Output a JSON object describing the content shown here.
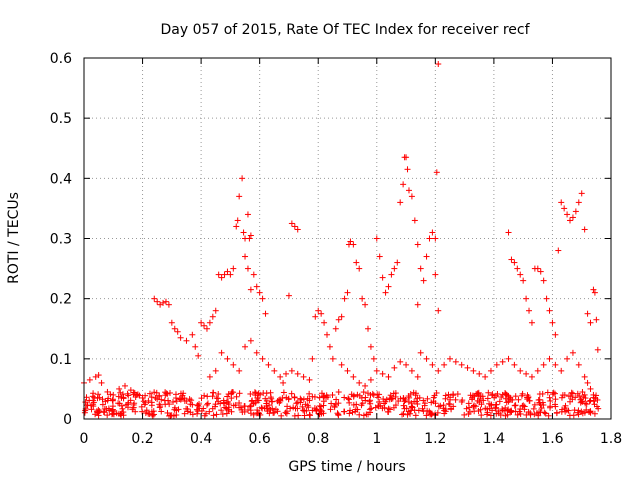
{
  "chart_data": {
    "type": "scatter",
    "title": "Day 057 of 2015, Rate Of TEC Index for receiver recf",
    "xlabel": "GPS time / hours",
    "ylabel": "ROTI / TECUs",
    "xlim": [
      0,
      1.8
    ],
    "ylim": [
      0,
      0.6
    ],
    "grid": true,
    "marker": "+",
    "color": "#ff0000",
    "x_ticks": [
      {
        "v": 0,
        "label": "0"
      },
      {
        "v": 0.2,
        "label": "0.2"
      },
      {
        "v": 0.4,
        "label": "0.4"
      },
      {
        "v": 0.6,
        "label": "0.6"
      },
      {
        "v": 0.8,
        "label": "0.8"
      },
      {
        "v": 1.0,
        "label": "1"
      },
      {
        "v": 1.2,
        "label": "1.2"
      },
      {
        "v": 1.4,
        "label": "1.4"
      },
      {
        "v": 1.6,
        "label": "1.6"
      },
      {
        "v": 1.8,
        "label": "1.8"
      }
    ],
    "y_ticks": [
      {
        "v": 0,
        "label": "0"
      },
      {
        "v": 0.1,
        "label": "0.1"
      },
      {
        "v": 0.2,
        "label": "0.2"
      },
      {
        "v": 0.3,
        "label": "0.3"
      },
      {
        "v": 0.4,
        "label": "0.4"
      },
      {
        "v": 0.5,
        "label": "0.5"
      },
      {
        "v": 0.6,
        "label": "0.6"
      }
    ],
    "series": [
      {
        "name": "roti",
        "points": [
          [
            0.0,
            0.06
          ],
          [
            0.02,
            0.065
          ],
          [
            0.04,
            0.07
          ],
          [
            0.05,
            0.073
          ],
          [
            0.06,
            0.06
          ],
          [
            0.08,
            0.045
          ],
          [
            0.1,
            0.04
          ],
          [
            0.12,
            0.05
          ],
          [
            0.14,
            0.055
          ],
          [
            0.16,
            0.048
          ],
          [
            0.18,
            0.04
          ],
          [
            0.2,
            0.035
          ],
          [
            0.22,
            0.03
          ],
          [
            0.24,
            0.2
          ],
          [
            0.25,
            0.195
          ],
          [
            0.26,
            0.19
          ],
          [
            0.27,
            0.193
          ],
          [
            0.28,
            0.195
          ],
          [
            0.29,
            0.19
          ],
          [
            0.3,
            0.16
          ],
          [
            0.31,
            0.15
          ],
          [
            0.32,
            0.145
          ],
          [
            0.33,
            0.135
          ],
          [
            0.35,
            0.13
          ],
          [
            0.37,
            0.14
          ],
          [
            0.38,
            0.12
          ],
          [
            0.39,
            0.105
          ],
          [
            0.4,
            0.16
          ],
          [
            0.41,
            0.155
          ],
          [
            0.42,
            0.15
          ],
          [
            0.43,
            0.16
          ],
          [
            0.44,
            0.17
          ],
          [
            0.45,
            0.18
          ],
          [
            0.46,
            0.24
          ],
          [
            0.47,
            0.235
          ],
          [
            0.48,
            0.24
          ],
          [
            0.49,
            0.245
          ],
          [
            0.5,
            0.24
          ],
          [
            0.51,
            0.25
          ],
          [
            0.52,
            0.32
          ],
          [
            0.525,
            0.33
          ],
          [
            0.53,
            0.37
          ],
          [
            0.54,
            0.4
          ],
          [
            0.545,
            0.31
          ],
          [
            0.55,
            0.3
          ],
          [
            0.56,
            0.34
          ],
          [
            0.565,
            0.3
          ],
          [
            0.57,
            0.305
          ],
          [
            0.58,
            0.24
          ],
          [
            0.59,
            0.22
          ],
          [
            0.6,
            0.21
          ],
          [
            0.61,
            0.2
          ],
          [
            0.62,
            0.175
          ],
          [
            0.55,
            0.27
          ],
          [
            0.56,
            0.25
          ],
          [
            0.57,
            0.215
          ],
          [
            0.7,
            0.205
          ],
          [
            0.71,
            0.325
          ],
          [
            0.72,
            0.32
          ],
          [
            0.73,
            0.315
          ],
          [
            0.43,
            0.07
          ],
          [
            0.45,
            0.08
          ],
          [
            0.47,
            0.11
          ],
          [
            0.49,
            0.1
          ],
          [
            0.51,
            0.09
          ],
          [
            0.53,
            0.08
          ],
          [
            0.55,
            0.12
          ],
          [
            0.57,
            0.13
          ],
          [
            0.59,
            0.11
          ],
          [
            0.61,
            0.1
          ],
          [
            0.63,
            0.09
          ],
          [
            0.65,
            0.08
          ],
          [
            0.67,
            0.07
          ],
          [
            0.68,
            0.06
          ],
          [
            0.69,
            0.075
          ],
          [
            0.71,
            0.08
          ],
          [
            0.73,
            0.075
          ],
          [
            0.75,
            0.07
          ],
          [
            0.77,
            0.065
          ],
          [
            0.78,
            0.1
          ],
          [
            0.79,
            0.17
          ],
          [
            0.8,
            0.18
          ],
          [
            0.81,
            0.175
          ],
          [
            0.82,
            0.16
          ],
          [
            0.83,
            0.14
          ],
          [
            0.84,
            0.12
          ],
          [
            0.85,
            0.1
          ],
          [
            0.86,
            0.15
          ],
          [
            0.87,
            0.165
          ],
          [
            0.88,
            0.17
          ],
          [
            0.89,
            0.2
          ],
          [
            0.9,
            0.21
          ],
          [
            0.905,
            0.29
          ],
          [
            0.91,
            0.295
          ],
          [
            0.92,
            0.29
          ],
          [
            0.93,
            0.26
          ],
          [
            0.94,
            0.25
          ],
          [
            0.95,
            0.2
          ],
          [
            0.96,
            0.19
          ],
          [
            0.97,
            0.15
          ],
          [
            0.98,
            0.12
          ],
          [
            0.99,
            0.1
          ],
          [
            1.0,
            0.3
          ],
          [
            1.01,
            0.27
          ],
          [
            1.02,
            0.235
          ],
          [
            0.88,
            0.09
          ],
          [
            0.9,
            0.08
          ],
          [
            0.92,
            0.07
          ],
          [
            0.94,
            0.06
          ],
          [
            0.96,
            0.055
          ],
          [
            0.98,
            0.065
          ],
          [
            1.0,
            0.08
          ],
          [
            1.02,
            0.075
          ],
          [
            1.04,
            0.07
          ],
          [
            1.06,
            0.085
          ],
          [
            1.08,
            0.095
          ],
          [
            1.1,
            0.09
          ],
          [
            1.12,
            0.08
          ],
          [
            1.14,
            0.07
          ],
          [
            1.03,
            0.21
          ],
          [
            1.04,
            0.22
          ],
          [
            1.05,
            0.24
          ],
          [
            1.06,
            0.25
          ],
          [
            1.07,
            0.26
          ],
          [
            1.08,
            0.36
          ],
          [
            1.09,
            0.39
          ],
          [
            1.095,
            0.435
          ],
          [
            1.1,
            0.435
          ],
          [
            1.105,
            0.415
          ],
          [
            1.11,
            0.38
          ],
          [
            1.12,
            0.37
          ],
          [
            1.13,
            0.33
          ],
          [
            1.14,
            0.29
          ],
          [
            1.15,
            0.25
          ],
          [
            1.16,
            0.23
          ],
          [
            1.17,
            0.27
          ],
          [
            1.18,
            0.3
          ],
          [
            1.19,
            0.31
          ],
          [
            1.2,
            0.3
          ],
          [
            1.205,
            0.41
          ],
          [
            1.21,
            0.59
          ],
          [
            1.2,
            0.24
          ],
          [
            1.21,
            0.18
          ],
          [
            1.14,
            0.19
          ],
          [
            1.15,
            0.11
          ],
          [
            1.17,
            0.1
          ],
          [
            1.19,
            0.09
          ],
          [
            1.21,
            0.08
          ],
          [
            1.23,
            0.09
          ],
          [
            1.25,
            0.1
          ],
          [
            1.27,
            0.095
          ],
          [
            1.29,
            0.09
          ],
          [
            1.31,
            0.085
          ],
          [
            1.33,
            0.08
          ],
          [
            1.35,
            0.075
          ],
          [
            1.37,
            0.07
          ],
          [
            1.39,
            0.08
          ],
          [
            1.41,
            0.09
          ],
          [
            1.43,
            0.095
          ],
          [
            1.45,
            0.1
          ],
          [
            1.47,
            0.09
          ],
          [
            1.49,
            0.08
          ],
          [
            1.51,
            0.075
          ],
          [
            1.53,
            0.07
          ],
          [
            1.45,
            0.31
          ],
          [
            1.46,
            0.265
          ],
          [
            1.47,
            0.26
          ],
          [
            1.48,
            0.25
          ],
          [
            1.49,
            0.24
          ],
          [
            1.5,
            0.23
          ],
          [
            1.51,
            0.2
          ],
          [
            1.52,
            0.18
          ],
          [
            1.53,
            0.16
          ],
          [
            1.54,
            0.25
          ],
          [
            1.55,
            0.25
          ],
          [
            1.56,
            0.245
          ],
          [
            1.57,
            0.23
          ],
          [
            1.58,
            0.2
          ],
          [
            1.59,
            0.18
          ],
          [
            1.6,
            0.16
          ],
          [
            1.61,
            0.14
          ],
          [
            1.62,
            0.28
          ],
          [
            1.63,
            0.36
          ],
          [
            1.64,
            0.35
          ],
          [
            1.65,
            0.34
          ],
          [
            1.66,
            0.33
          ],
          [
            1.67,
            0.335
          ],
          [
            1.68,
            0.345
          ],
          [
            1.69,
            0.36
          ],
          [
            1.7,
            0.375
          ],
          [
            1.71,
            0.315
          ],
          [
            1.72,
            0.175
          ],
          [
            1.73,
            0.16
          ],
          [
            1.74,
            0.215
          ],
          [
            1.745,
            0.21
          ],
          [
            1.75,
            0.165
          ],
          [
            1.755,
            0.115
          ],
          [
            1.55,
            0.08
          ],
          [
            1.57,
            0.09
          ],
          [
            1.59,
            0.1
          ],
          [
            1.61,
            0.09
          ],
          [
            1.63,
            0.08
          ],
          [
            1.65,
            0.1
          ],
          [
            1.67,
            0.11
          ],
          [
            1.69,
            0.09
          ],
          [
            1.71,
            0.07
          ],
          [
            1.72,
            0.06
          ],
          [
            1.73,
            0.05
          ],
          [
            1.74,
            0.04
          ]
        ]
      }
    ],
    "noise_band": {
      "x_range": [
        0,
        1.76
      ],
      "y_range": [
        0.005,
        0.045
      ],
      "count": 700
    }
  }
}
